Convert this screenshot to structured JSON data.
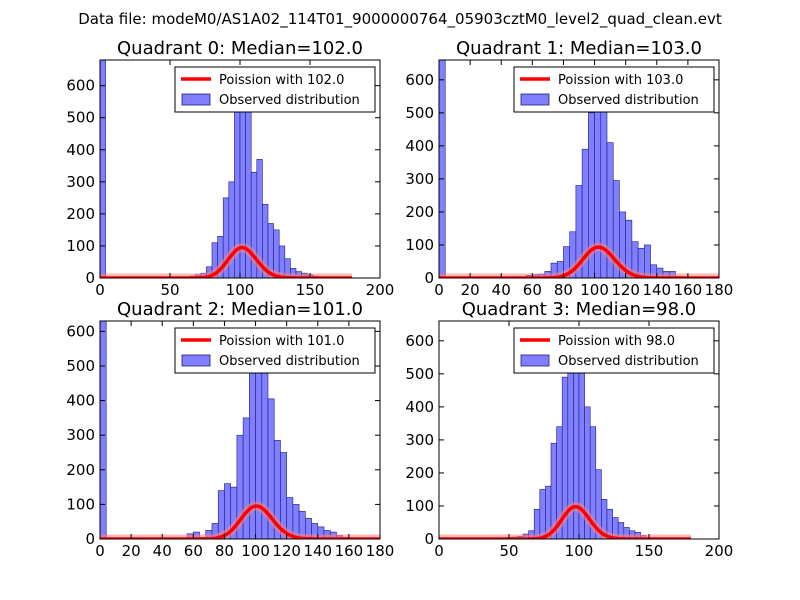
{
  "figure": {
    "suptitle": "Data file: modeM0/AS1A02_114T01_9000000764_05903cztM0_level2_quad_clean.evt",
    "hist_color": "#7f7fff",
    "hist_edge": "#1f1f7f",
    "curve_color": "#ff0000",
    "curve_halo": "#ff8080"
  },
  "chart_data": [
    {
      "type": "bar",
      "title": "Quadrant 0: Median=102.0",
      "xlabel": "",
      "ylabel": "",
      "xlim": [
        0,
        200
      ],
      "ylim": [
        0,
        680
      ],
      "xticks": [
        0,
        50,
        100,
        150,
        200
      ],
      "yticks": [
        0,
        100,
        200,
        300,
        400,
        500,
        600
      ],
      "legend": {
        "placement": "top-right",
        "curve_label": "Poission with 102.0",
        "hist_label": "Observed distribution"
      },
      "bin_width": 4,
      "bins": [
        {
          "x": 0,
          "v": 680
        },
        {
          "x": 52,
          "v": 2
        },
        {
          "x": 56,
          "v": 2
        },
        {
          "x": 60,
          "v": 4
        },
        {
          "x": 64,
          "v": 6
        },
        {
          "x": 68,
          "v": 10
        },
        {
          "x": 72,
          "v": 15
        },
        {
          "x": 76,
          "v": 35
        },
        {
          "x": 80,
          "v": 110
        },
        {
          "x": 84,
          "v": 130
        },
        {
          "x": 88,
          "v": 250
        },
        {
          "x": 92,
          "v": 300
        },
        {
          "x": 96,
          "v": 520
        },
        {
          "x": 100,
          "v": 650
        },
        {
          "x": 104,
          "v": 620
        },
        {
          "x": 108,
          "v": 330
        },
        {
          "x": 112,
          "v": 370
        },
        {
          "x": 116,
          "v": 230
        },
        {
          "x": 120,
          "v": 170
        },
        {
          "x": 124,
          "v": 150
        },
        {
          "x": 128,
          "v": 100
        },
        {
          "x": 132,
          "v": 60
        },
        {
          "x": 136,
          "v": 30
        },
        {
          "x": 140,
          "v": 20
        },
        {
          "x": 144,
          "v": 15
        },
        {
          "x": 148,
          "v": 10
        },
        {
          "x": 152,
          "v": 6
        },
        {
          "x": 156,
          "v": 3
        }
      ],
      "curve": {
        "mean": 102.0,
        "xmin": 0,
        "xmax": 180,
        "scale": 2400
      }
    },
    {
      "type": "bar",
      "title": "Quadrant 1: Median=103.0",
      "xlabel": "",
      "ylabel": "",
      "xlim": [
        0,
        180
      ],
      "ylim": [
        0,
        660
      ],
      "xticks": [
        0,
        20,
        40,
        60,
        80,
        100,
        120,
        140,
        160,
        180
      ],
      "yticks": [
        0,
        100,
        200,
        300,
        400,
        500,
        600
      ],
      "legend": {
        "placement": "top-right",
        "curve_label": "Poission with 103.0",
        "hist_label": "Observed distribution"
      },
      "bin_width": 4,
      "bins": [
        {
          "x": 0,
          "v": 660
        },
        {
          "x": 56,
          "v": 8
        },
        {
          "x": 60,
          "v": 10
        },
        {
          "x": 64,
          "v": 12
        },
        {
          "x": 68,
          "v": 20
        },
        {
          "x": 72,
          "v": 45
        },
        {
          "x": 76,
          "v": 50
        },
        {
          "x": 80,
          "v": 95
        },
        {
          "x": 84,
          "v": 140
        },
        {
          "x": 88,
          "v": 280
        },
        {
          "x": 92,
          "v": 390
        },
        {
          "x": 96,
          "v": 500
        },
        {
          "x": 100,
          "v": 595
        },
        {
          "x": 104,
          "v": 530
        },
        {
          "x": 108,
          "v": 410
        },
        {
          "x": 112,
          "v": 295
        },
        {
          "x": 116,
          "v": 200
        },
        {
          "x": 120,
          "v": 175
        },
        {
          "x": 124,
          "v": 110
        },
        {
          "x": 128,
          "v": 90
        },
        {
          "x": 132,
          "v": 100
        },
        {
          "x": 136,
          "v": 40
        },
        {
          "x": 140,
          "v": 30
        },
        {
          "x": 144,
          "v": 20
        },
        {
          "x": 148,
          "v": 20
        },
        {
          "x": 152,
          "v": 5
        }
      ],
      "curve": {
        "mean": 103.0,
        "xmin": 0,
        "xmax": 180,
        "scale": 2380
      }
    },
    {
      "type": "bar",
      "title": "Quadrant 2: Median=101.0",
      "xlabel": "",
      "ylabel": "",
      "xlim": [
        0,
        180
      ],
      "ylim": [
        0,
        630
      ],
      "xticks": [
        0,
        20,
        40,
        60,
        80,
        100,
        120,
        140,
        160,
        180
      ],
      "yticks": [
        0,
        100,
        200,
        300,
        400,
        500,
        600
      ],
      "legend": {
        "placement": "top-right",
        "curve_label": "Poission with 101.0",
        "hist_label": "Observed distribution"
      },
      "bin_width": 4,
      "bins": [
        {
          "x": 0,
          "v": 630
        },
        {
          "x": 56,
          "v": 15
        },
        {
          "x": 60,
          "v": 20
        },
        {
          "x": 64,
          "v": 5
        },
        {
          "x": 68,
          "v": 25
        },
        {
          "x": 72,
          "v": 45
        },
        {
          "x": 76,
          "v": 140
        },
        {
          "x": 80,
          "v": 160
        },
        {
          "x": 84,
          "v": 150
        },
        {
          "x": 88,
          "v": 300
        },
        {
          "x": 92,
          "v": 350
        },
        {
          "x": 96,
          "v": 520
        },
        {
          "x": 100,
          "v": 590
        },
        {
          "x": 104,
          "v": 510
        },
        {
          "x": 108,
          "v": 405
        },
        {
          "x": 112,
          "v": 285
        },
        {
          "x": 116,
          "v": 250
        },
        {
          "x": 120,
          "v": 120
        },
        {
          "x": 124,
          "v": 100
        },
        {
          "x": 128,
          "v": 80
        },
        {
          "x": 132,
          "v": 60
        },
        {
          "x": 136,
          "v": 45
        },
        {
          "x": 140,
          "v": 35
        },
        {
          "x": 144,
          "v": 25
        },
        {
          "x": 148,
          "v": 20
        },
        {
          "x": 152,
          "v": 10
        },
        {
          "x": 156,
          "v": 5
        }
      ],
      "curve": {
        "mean": 101.0,
        "xmin": 0,
        "xmax": 180,
        "scale": 2400
      }
    },
    {
      "type": "bar",
      "title": "Quadrant 3: Median=98.0",
      "xlabel": "",
      "ylabel": "",
      "xlim": [
        0,
        200
      ],
      "ylim": [
        0,
        660
      ],
      "xticks": [
        0,
        50,
        100,
        150,
        200
      ],
      "yticks": [
        0,
        100,
        200,
        300,
        400,
        500,
        600
      ],
      "legend": {
        "placement": "top-right",
        "curve_label": "Poission with 98.0",
        "hist_label": "Observed distribution"
      },
      "bin_width": 4,
      "bins": [
        {
          "x": 48,
          "v": 5
        },
        {
          "x": 52,
          "v": 6
        },
        {
          "x": 56,
          "v": 8
        },
        {
          "x": 60,
          "v": 15
        },
        {
          "x": 64,
          "v": 25
        },
        {
          "x": 68,
          "v": 90
        },
        {
          "x": 72,
          "v": 150
        },
        {
          "x": 76,
          "v": 160
        },
        {
          "x": 80,
          "v": 290
        },
        {
          "x": 84,
          "v": 340
        },
        {
          "x": 88,
          "v": 490
        },
        {
          "x": 92,
          "v": 520
        },
        {
          "x": 96,
          "v": 530
        },
        {
          "x": 100,
          "v": 600
        },
        {
          "x": 104,
          "v": 400
        },
        {
          "x": 108,
          "v": 340
        },
        {
          "x": 112,
          "v": 210
        },
        {
          "x": 116,
          "v": 120
        },
        {
          "x": 120,
          "v": 90
        },
        {
          "x": 124,
          "v": 65
        },
        {
          "x": 128,
          "v": 50
        },
        {
          "x": 132,
          "v": 35
        },
        {
          "x": 136,
          "v": 25
        },
        {
          "x": 140,
          "v": 20
        },
        {
          "x": 144,
          "v": 10
        }
      ],
      "curve": {
        "mean": 98.0,
        "xmin": 0,
        "xmax": 180,
        "scale": 2430
      }
    }
  ]
}
